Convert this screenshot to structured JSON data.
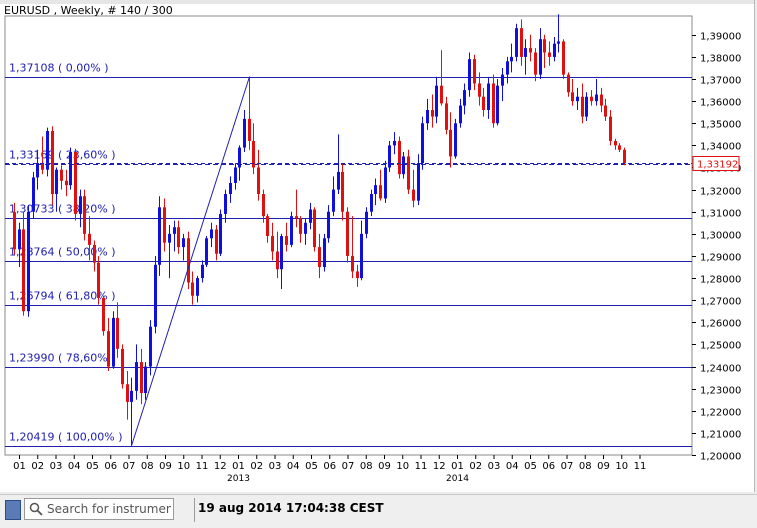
{
  "chart_title": "EURUSD , Weekly, # 140 / 300",
  "fib_levels": [
    {
      "label": "1,37108 ( 0,00% )",
      "price": 1.37108
    },
    {
      "label": "1,33169 ( 23,60% )",
      "price": 1.33169
    },
    {
      "label": "1,30733 ( 38,20% )",
      "price": 1.30733
    },
    {
      "label": "1,28764 ( 50,00% )",
      "price": 1.28764
    },
    {
      "label": "1,26794 ( 61,80% )",
      "price": 1.26794
    },
    {
      "label": "1,23990 ( 78,60% )",
      "price": 1.2399
    },
    {
      "label": "1,20419 ( 100,00% )",
      "price": 1.20419
    }
  ],
  "current_price": {
    "label": "1,33192",
    "value": 1.33192
  },
  "chart_data": {
    "type": "candlestick",
    "symbol": "EURUSD",
    "timeframe": "Weekly",
    "ylim": [
      1.2,
      1.3985
    ],
    "y_ticks": [
      "1,20000",
      "1,21000",
      "1,22000",
      "1,23000",
      "1,24000",
      "1,25000",
      "1,26000",
      "1,27000",
      "1,28000",
      "1,29000",
      "1,30000",
      "1,31000",
      "1,32000",
      "1,33000",
      "1,34000",
      "1,35000",
      "1,36000",
      "1,37000",
      "1,38000",
      "1,39000"
    ],
    "x_ticks": [
      "01",
      "02",
      "03",
      "04",
      "05",
      "06",
      "07",
      "08",
      "09",
      "10",
      "11",
      "12",
      "2013",
      "02",
      "03",
      "04",
      "05",
      "06",
      "07",
      "08",
      "09",
      "10",
      "11",
      "12",
      "2014",
      "02",
      "03",
      "04",
      "05",
      "06",
      "07",
      "08",
      "09",
      "10",
      "11"
    ],
    "bull_color": "#1010dd",
    "bear_color": "#e01010",
    "candles": [
      [
        1.3098,
        1.314,
        1.2905,
        1.293
      ],
      [
        1.293,
        1.305,
        1.285,
        1.302
      ],
      [
        1.302,
        1.31,
        1.263,
        1.265
      ],
      [
        1.265,
        1.313,
        1.2625,
        1.31
      ],
      [
        1.31,
        1.328,
        1.307,
        1.3255
      ],
      [
        1.3255,
        1.338,
        1.32,
        1.332
      ],
      [
        1.332,
        1.344,
        1.327,
        1.329
      ],
      [
        1.329,
        1.348,
        1.326,
        1.3465
      ],
      [
        1.3465,
        1.3486,
        1.313,
        1.318
      ],
      [
        1.318,
        1.33,
        1.31,
        1.329
      ],
      [
        1.329,
        1.331,
        1.32,
        1.324
      ],
      [
        1.324,
        1.329,
        1.317,
        1.322
      ],
      [
        1.322,
        1.339,
        1.32,
        1.337
      ],
      [
        1.337,
        1.3385,
        1.306,
        1.309
      ],
      [
        1.309,
        1.32,
        1.303,
        1.317
      ],
      [
        1.317,
        1.32,
        1.297,
        1.3
      ],
      [
        1.3,
        1.308,
        1.288,
        1.295
      ],
      [
        1.295,
        1.297,
        1.283,
        1.287
      ],
      [
        1.287,
        1.29,
        1.268,
        1.271
      ],
      [
        1.271,
        1.272,
        1.254,
        1.256
      ],
      [
        1.256,
        1.262,
        1.238,
        1.24
      ],
      [
        1.24,
        1.265,
        1.239,
        1.262
      ],
      [
        1.262,
        1.269,
        1.244,
        1.248
      ],
      [
        1.248,
        1.25,
        1.23,
        1.232
      ],
      [
        1.232,
        1.238,
        1.216,
        1.224
      ],
      [
        1.224,
        1.235,
        1.2042,
        1.229
      ],
      [
        1.229,
        1.25,
        1.225,
        1.242
      ],
      [
        1.242,
        1.248,
        1.223,
        1.228
      ],
      [
        1.228,
        1.242,
        1.225,
        1.24
      ],
      [
        1.24,
        1.261,
        1.236,
        1.258
      ],
      [
        1.258,
        1.29,
        1.255,
        1.286
      ],
      [
        1.286,
        1.317,
        1.281,
        1.312
      ],
      [
        1.312,
        1.316,
        1.292,
        1.296
      ],
      [
        1.296,
        1.304,
        1.28,
        1.3
      ],
      [
        1.3,
        1.306,
        1.292,
        1.303
      ],
      [
        1.303,
        1.306,
        1.291,
        1.294
      ],
      [
        1.294,
        1.3,
        1.288,
        1.298
      ],
      [
        1.298,
        1.301,
        1.275,
        1.278
      ],
      [
        1.278,
        1.283,
        1.268,
        1.272
      ],
      [
        1.272,
        1.281,
        1.269,
        1.28
      ],
      [
        1.28,
        1.288,
        1.278,
        1.286
      ],
      [
        1.286,
        1.299,
        1.285,
        1.298
      ],
      [
        1.298,
        1.305,
        1.294,
        1.302
      ],
      [
        1.302,
        1.304,
        1.288,
        1.291
      ],
      [
        1.291,
        1.311,
        1.29,
        1.309
      ],
      [
        1.309,
        1.32,
        1.305,
        1.318
      ],
      [
        1.318,
        1.326,
        1.314,
        1.323
      ],
      [
        1.323,
        1.332,
        1.32,
        1.33
      ],
      [
        1.33,
        1.34,
        1.324,
        1.339
      ],
      [
        1.339,
        1.356,
        1.337,
        1.352
      ],
      [
        1.352,
        1.3711,
        1.338,
        1.342
      ],
      [
        1.342,
        1.35,
        1.327,
        1.33
      ],
      [
        1.33,
        1.338,
        1.315,
        1.318
      ],
      [
        1.318,
        1.32,
        1.305,
        1.308
      ],
      [
        1.308,
        1.309,
        1.296,
        1.299
      ],
      [
        1.299,
        1.305,
        1.288,
        1.292
      ],
      [
        1.292,
        1.301,
        1.28,
        1.284
      ],
      [
        1.284,
        1.3,
        1.275,
        1.299
      ],
      [
        1.299,
        1.305,
        1.292,
        1.295
      ],
      [
        1.295,
        1.31,
        1.294,
        1.308
      ],
      [
        1.308,
        1.32,
        1.303,
        1.307
      ],
      [
        1.307,
        1.308,
        1.296,
        1.3
      ],
      [
        1.3,
        1.307,
        1.295,
        1.305
      ],
      [
        1.305,
        1.314,
        1.302,
        1.311
      ],
      [
        1.311,
        1.312,
        1.292,
        1.294
      ],
      [
        1.294,
        1.3,
        1.28,
        1.285
      ],
      [
        1.285,
        1.3,
        1.283,
        1.298
      ],
      [
        1.298,
        1.313,
        1.296,
        1.31
      ],
      [
        1.31,
        1.326,
        1.308,
        1.32
      ],
      [
        1.32,
        1.345,
        1.318,
        1.328
      ],
      [
        1.328,
        1.332,
        1.306,
        1.31
      ],
      [
        1.31,
        1.312,
        1.287,
        1.29
      ],
      [
        1.29,
        1.308,
        1.28,
        1.283
      ],
      [
        1.283,
        1.286,
        1.276,
        1.28
      ],
      [
        1.28,
        1.306,
        1.279,
        1.3
      ],
      [
        1.3,
        1.312,
        1.298,
        1.31
      ],
      [
        1.31,
        1.32,
        1.308,
        1.318
      ],
      [
        1.318,
        1.325,
        1.313,
        1.322
      ],
      [
        1.322,
        1.329,
        1.315,
        1.316
      ],
      [
        1.316,
        1.333,
        1.314,
        1.33
      ],
      [
        1.33,
        1.342,
        1.328,
        1.34
      ],
      [
        1.34,
        1.346,
        1.336,
        1.342
      ],
      [
        1.342,
        1.344,
        1.325,
        1.327
      ],
      [
        1.327,
        1.337,
        1.325,
        1.335
      ],
      [
        1.335,
        1.338,
        1.318,
        1.32
      ],
      [
        1.32,
        1.329,
        1.312,
        1.315
      ],
      [
        1.315,
        1.336,
        1.313,
        1.332
      ],
      [
        1.332,
        1.353,
        1.329,
        1.35
      ],
      [
        1.35,
        1.361,
        1.347,
        1.356
      ],
      [
        1.356,
        1.363,
        1.348,
        1.353
      ],
      [
        1.353,
        1.371,
        1.35,
        1.367
      ],
      [
        1.367,
        1.383,
        1.358,
        1.359
      ],
      [
        1.359,
        1.362,
        1.345,
        1.347
      ],
      [
        1.347,
        1.355,
        1.33,
        1.335
      ],
      [
        1.335,
        1.352,
        1.334,
        1.35
      ],
      [
        1.35,
        1.361,
        1.348,
        1.358
      ],
      [
        1.358,
        1.368,
        1.354,
        1.365
      ],
      [
        1.365,
        1.382,
        1.362,
        1.379
      ],
      [
        1.379,
        1.381,
        1.365,
        1.368
      ],
      [
        1.368,
        1.373,
        1.358,
        1.362
      ],
      [
        1.362,
        1.366,
        1.353,
        1.356
      ],
      [
        1.356,
        1.371,
        1.352,
        1.368
      ],
      [
        1.368,
        1.372,
        1.348,
        1.35
      ],
      [
        1.35,
        1.37,
        1.349,
        1.367
      ],
      [
        1.367,
        1.375,
        1.36,
        1.372
      ],
      [
        1.372,
        1.38,
        1.368,
        1.378
      ],
      [
        1.378,
        1.386,
        1.373,
        1.38
      ],
      [
        1.38,
        1.395,
        1.378,
        1.393
      ],
      [
        1.393,
        1.397,
        1.376,
        1.38
      ],
      [
        1.38,
        1.388,
        1.372,
        1.384
      ],
      [
        1.384,
        1.39,
        1.378,
        1.382
      ],
      [
        1.382,
        1.384,
        1.369,
        1.372
      ],
      [
        1.372,
        1.393,
        1.37,
        1.388
      ],
      [
        1.388,
        1.39,
        1.375,
        1.382
      ],
      [
        1.382,
        1.387,
        1.376,
        1.38
      ],
      [
        1.38,
        1.389,
        1.378,
        1.386
      ],
      [
        1.386,
        1.3993,
        1.382,
        1.387
      ],
      [
        1.387,
        1.388,
        1.37,
        1.372
      ],
      [
        1.372,
        1.373,
        1.362,
        1.364
      ],
      [
        1.364,
        1.37,
        1.358,
        1.36
      ],
      [
        1.36,
        1.366,
        1.356,
        1.362
      ],
      [
        1.362,
        1.368,
        1.35,
        1.353
      ],
      [
        1.353,
        1.364,
        1.351,
        1.362
      ],
      [
        1.362,
        1.365,
        1.358,
        1.36
      ],
      [
        1.36,
        1.37,
        1.358,
        1.363
      ],
      [
        1.363,
        1.366,
        1.355,
        1.358
      ],
      [
        1.358,
        1.361,
        1.351,
        1.353
      ],
      [
        1.353,
        1.356,
        1.34,
        1.342
      ],
      [
        1.342,
        1.343,
        1.338,
        1.34
      ],
      [
        1.34,
        1.341,
        1.337,
        1.338
      ],
      [
        1.338,
        1.339,
        1.331,
        1.3319
      ]
    ]
  },
  "search": {
    "placeholder": "Search for instrument"
  },
  "status": {
    "time": "19 aug 2014 17:04:38 CEST"
  },
  "colors": {
    "axis_text": "#000000",
    "fib_line": "#2020b0",
    "fib_label": "#2020b0",
    "price_marker": "#e01010"
  }
}
